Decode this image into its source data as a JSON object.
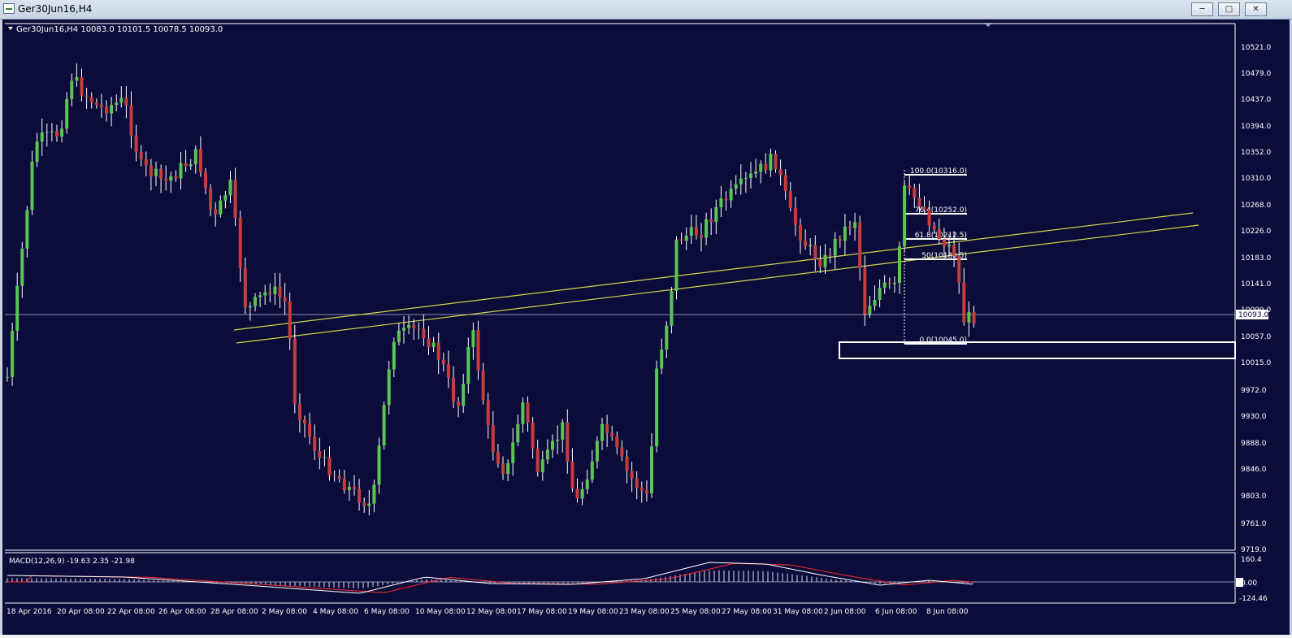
{
  "window": {
    "title": "Ger30Jun16,H4",
    "icon": "chart-window-icon",
    "buttons": [
      "minimize",
      "restore",
      "close"
    ]
  },
  "chart_header": "Ger30Jun16,H4  10083.0 10101.5 10078.5 10093.0",
  "colors": {
    "background": "#0c0c3a",
    "bull_candle": "#59c653",
    "bear_candle": "#c83c3c",
    "trendline": "#d4d44a",
    "text": "#ffffff",
    "macd_signal": "#ff2a2a",
    "macd_line": "#ffffff"
  },
  "chart_data": {
    "type": "candlestick",
    "symbol": "Ger30Jun16",
    "timeframe": "H4",
    "last_price": "10093.0",
    "y_ticks": [
      "10521.0",
      "10479.0",
      "10437.0",
      "10394.0",
      "10352.0",
      "10310.0",
      "10268.0",
      "10226.0",
      "10183.0",
      "10141.0",
      "10099.0",
      "10057.0",
      "10015.0",
      "9972.0",
      "9930.0",
      "9888.0",
      "9846.0",
      "9803.0",
      "9761.0",
      "9719.0"
    ],
    "x_ticks": [
      "18 Apr 2016",
      "20 Apr 08:00",
      "22 Apr 08:00",
      "26 Apr 08:00",
      "28 Apr 08:00",
      "2 May 08:00",
      "4 May 08:00",
      "6 May 08:00",
      "10 May 08:00",
      "12 May 08:00",
      "17 May 08:00",
      "19 May 08:00",
      "23 May 08:00",
      "25 May 08:00",
      "27 May 08:00",
      "31 May 08:00",
      "2 Jun 08:00",
      "6 Jun 08:00",
      "8 Jun 08:00"
    ],
    "fibonacci_levels": [
      "100.0(10316.0)",
      "76.4(10252.0)",
      "61.8(10212.5)",
      "50(10180.5)",
      "0.0(10045.0)"
    ],
    "macd": {
      "label": "MACD(12,26,9) -19.63 2.35 -21.98",
      "y_ticks": [
        "160.4",
        "0.00",
        "-124.46"
      ]
    }
  }
}
